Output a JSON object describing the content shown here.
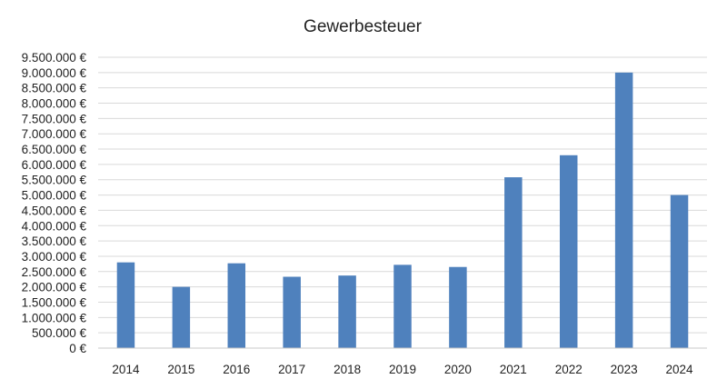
{
  "chart_data": {
    "type": "bar",
    "title": "Gewerbesteuer",
    "xlabel": "",
    "ylabel": "",
    "categories": [
      "2014",
      "2015",
      "2016",
      "2017",
      "2018",
      "2019",
      "2020",
      "2021",
      "2022",
      "2023",
      "2024"
    ],
    "values": [
      2800000,
      2000000,
      2770000,
      2330000,
      2370000,
      2720000,
      2650000,
      5580000,
      6300000,
      9000000,
      5000000
    ],
    "ylim": [
      0,
      9500000
    ],
    "y_ticks": [
      "0 €",
      "500.000 €",
      "1.000.000 €",
      "1.500.000 €",
      "2.000.000 €",
      "2.500.000 €",
      "3.000.000 €",
      "3.500.000 €",
      "4.000.000 €",
      "4.500.000 €",
      "5.000.000 €",
      "5.500.000 €",
      "6.000.000 €",
      "6.500.000 €",
      "7.000.000 €",
      "7.500.000 €",
      "8.000.000 €",
      "8.500.000 €",
      "9.000.000 €",
      "9.500.000 €"
    ],
    "grid": true,
    "legend": "none",
    "bar_color": "#4f81bd"
  }
}
